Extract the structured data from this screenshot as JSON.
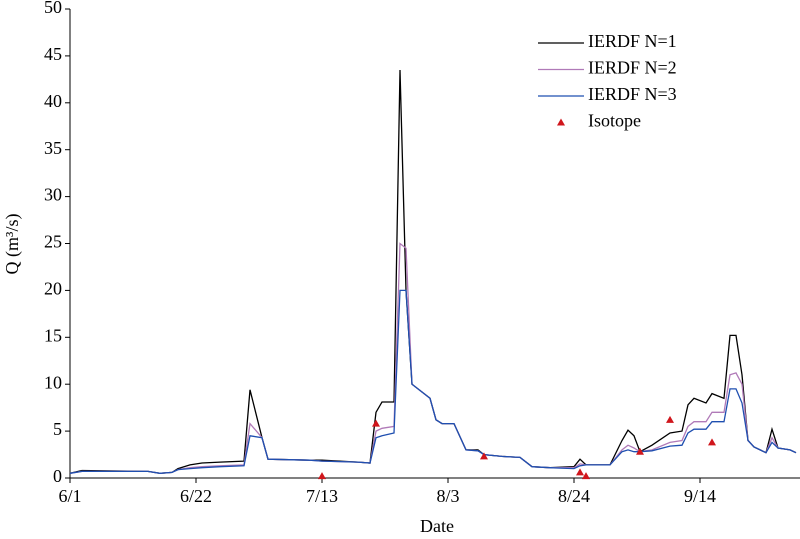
{
  "chart_data": {
    "type": "line",
    "xlabel": "Date",
    "ylabel": "Q (m³/s)",
    "x": [
      "6/1",
      "6/3",
      "6/14",
      "6/16",
      "6/18",
      "6/19",
      "6/21",
      "6/23",
      "6/26",
      "6/30",
      "7/1",
      "7/3",
      "7/4",
      "7/11",
      "7/13",
      "7/19",
      "7/21",
      "7/22",
      "7/23",
      "7/25",
      "7/26",
      "7/27",
      "7/28",
      "7/31",
      "8/1",
      "8/2",
      "8/4",
      "8/6",
      "8/8",
      "8/9",
      "8/12",
      "8/15",
      "8/17",
      "8/20",
      "8/24",
      "8/25",
      "8/26",
      "8/30",
      "9/1",
      "9/2",
      "9/3",
      "9/4",
      "9/6",
      "9/9",
      "9/11",
      "9/12",
      "9/13",
      "9/15",
      "9/16",
      "9/18",
      "9/19",
      "9/20",
      "9/21",
      "9/22",
      "9/23",
      "9/25",
      "9/26",
      "9/27",
      "9/29",
      "9/30"
    ],
    "xlim": [
      "6/1",
      "9/30"
    ],
    "xticks": [
      "6/1",
      "6/22",
      "7/13",
      "8/3",
      "8/24",
      "9/14"
    ],
    "ylim": [
      0,
      50
    ],
    "yticks": [
      0,
      5,
      10,
      15,
      20,
      25,
      30,
      35,
      40,
      45,
      50
    ],
    "legend": "upper-right",
    "series": [
      {
        "name": "IERDF N=1",
        "type": "line",
        "color": "#000000",
        "values": [
          0.5,
          0.8,
          0.7,
          0.5,
          0.6,
          1.0,
          1.4,
          1.6,
          1.7,
          1.8,
          9.4,
          4.3,
          2.0,
          1.9,
          1.9,
          1.7,
          1.6,
          7.0,
          8.1,
          8.1,
          43.5,
          20,
          10,
          8.5,
          6.2,
          5.8,
          5.8,
          3.0,
          3.0,
          2.5,
          2.3,
          2.2,
          1.2,
          1.1,
          1.2,
          2.0,
          1.4,
          1.4,
          4.0,
          5.1,
          4.5,
          2.8,
          3.5,
          4.8,
          5.0,
          7.8,
          8.5,
          8.0,
          9.0,
          8.5,
          15.2,
          15.2,
          11,
          4.0,
          3.3,
          2.7,
          5.2,
          3.2,
          3.0,
          2.7
        ]
      },
      {
        "name": "IERDF N=2",
        "type": "line",
        "color": "#b07ab8",
        "values": [
          0.5,
          0.7,
          0.7,
          0.5,
          0.6,
          0.9,
          1.1,
          1.2,
          1.3,
          1.4,
          5.8,
          4.3,
          2.0,
          1.9,
          1.8,
          1.7,
          1.6,
          5.0,
          5.3,
          5.5,
          25,
          24.5,
          10,
          8.5,
          6.2,
          5.8,
          5.8,
          3.0,
          2.9,
          2.5,
          2.3,
          2.2,
          1.2,
          1.1,
          1.1,
          1.5,
          1.4,
          1.4,
          3.0,
          3.5,
          3.2,
          2.8,
          3.0,
          3.8,
          4.0,
          5.5,
          6.0,
          6.0,
          7.0,
          7.0,
          11,
          11.2,
          10,
          4.0,
          3.3,
          2.7,
          4.3,
          3.2,
          3.0,
          2.7
        ]
      },
      {
        "name": "IERDF N=3",
        "type": "line",
        "color": "#1f4fb0",
        "values": [
          0.5,
          0.7,
          0.7,
          0.5,
          0.6,
          0.9,
          1.0,
          1.1,
          1.2,
          1.3,
          4.5,
          4.3,
          2.0,
          1.9,
          1.8,
          1.7,
          1.6,
          4.3,
          4.5,
          4.8,
          20,
          20,
          10,
          8.5,
          6.2,
          5.8,
          5.8,
          3.0,
          2.9,
          2.5,
          2.3,
          2.2,
          1.2,
          1.1,
          1.0,
          1.3,
          1.4,
          1.4,
          2.8,
          3.0,
          2.8,
          2.8,
          2.9,
          3.4,
          3.5,
          4.8,
          5.2,
          5.2,
          6.0,
          6.0,
          9.5,
          9.5,
          8,
          4.0,
          3.3,
          2.7,
          3.8,
          3.2,
          3.0,
          2.7
        ]
      },
      {
        "name": "Isotope",
        "type": "scatter",
        "color": "#d0161c",
        "x": [
          "7/13",
          "7/22",
          "8/9",
          "8/25",
          "8/26",
          "9/4",
          "9/9",
          "9/16"
        ],
        "values": [
          0.2,
          5.8,
          2.3,
          0.6,
          0.2,
          2.8,
          6.2,
          3.8
        ]
      }
    ]
  }
}
